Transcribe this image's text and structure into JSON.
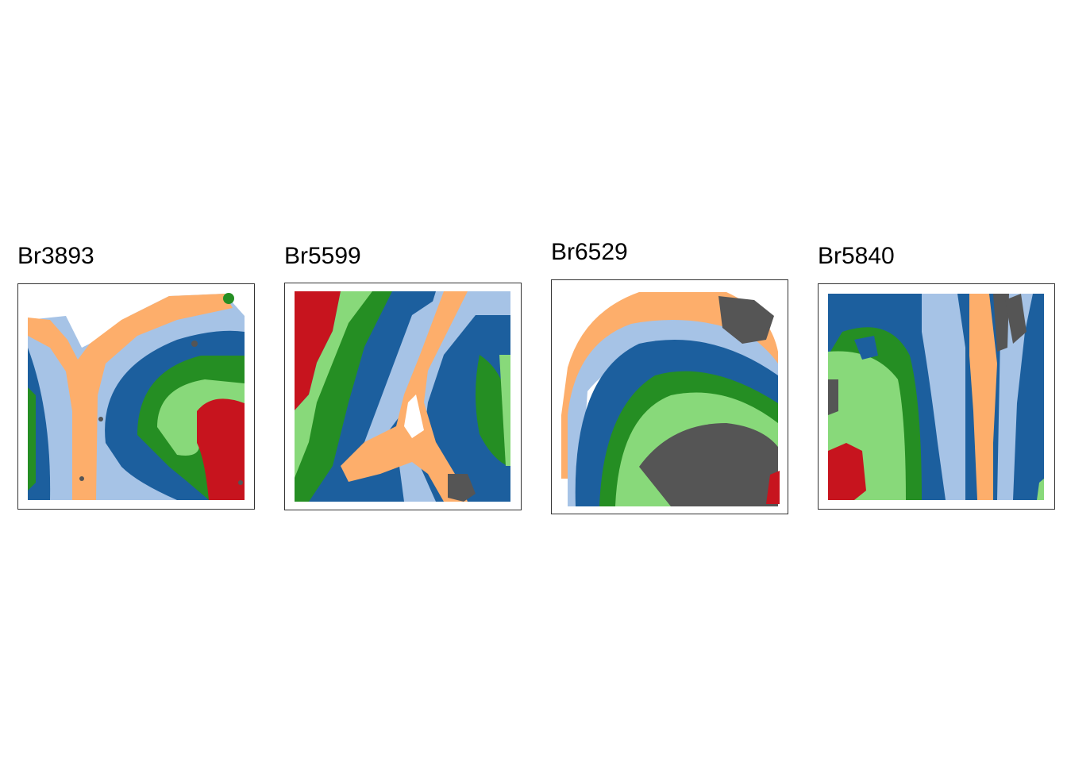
{
  "chart_data": [
    {
      "type": "scatter",
      "title": "Br3893",
      "xlabel": "",
      "ylabel": "",
      "axes": "none",
      "point_shape": "hexagonal spot grid",
      "layers": [
        {
          "colour": "#A6C3E6",
          "region": "background"
        },
        {
          "colour": "#1C5F9E",
          "region": "left band and middle arc"
        },
        {
          "colour": "#FDAE6B",
          "region": "Y-shaped band"
        },
        {
          "colour": "#258E23",
          "region": "inner arc"
        },
        {
          "colour": "#88D97A",
          "region": "inner core ring"
        },
        {
          "colour": "#C7141E",
          "region": "lower-right core"
        },
        {
          "colour": "#555555",
          "region": "scattered spots"
        }
      ]
    },
    {
      "type": "scatter",
      "title": "Br5599",
      "xlabel": "",
      "ylabel": "",
      "axes": "none",
      "point_shape": "hexagonal spot grid",
      "layers": [
        {
          "colour": "#C7141E",
          "region": "left edge"
        },
        {
          "colour": "#88D97A",
          "region": "diagonal band"
        },
        {
          "colour": "#258E23",
          "region": "diagonal band"
        },
        {
          "colour": "#1C5F9E",
          "region": "diagonal bands"
        },
        {
          "colour": "#A6C3E6",
          "region": "diagonal bands"
        },
        {
          "colour": "#FDAE6B",
          "region": "forked band"
        },
        {
          "colour": "#555555",
          "region": "lower-right patch"
        }
      ]
    },
    {
      "type": "scatter",
      "title": "Br6529",
      "xlabel": "",
      "ylabel": "",
      "axes": "none",
      "point_shape": "hexagonal spot grid",
      "layers": [
        {
          "colour": "#FDAE6B",
          "region": "outer arc"
        },
        {
          "colour": "#A6C3E6",
          "region": "arc"
        },
        {
          "colour": "#1C5F9E",
          "region": "arc"
        },
        {
          "colour": "#258E23",
          "region": "arc"
        },
        {
          "colour": "#88D97A",
          "region": "core"
        },
        {
          "colour": "#555555",
          "region": "lower core and top-right patch"
        },
        {
          "colour": "#C7141E",
          "region": "bottom-right corner"
        }
      ]
    },
    {
      "type": "scatter",
      "title": "Br5840",
      "xlabel": "",
      "ylabel": "",
      "axes": "none",
      "point_shape": "hexagonal spot grid",
      "layers": [
        {
          "colour": "#1C5F9E",
          "region": "vertical bands"
        },
        {
          "colour": "#A6C3E6",
          "region": "vertical bands"
        },
        {
          "colour": "#FDAE6B",
          "region": "vertical band"
        },
        {
          "colour": "#258E23",
          "region": "left band"
        },
        {
          "colour": "#88D97A",
          "region": "left region"
        },
        {
          "colour": "#C7141E",
          "region": "lower-left patch"
        },
        {
          "colour": "#555555",
          "region": "top patches"
        }
      ]
    }
  ]
}
